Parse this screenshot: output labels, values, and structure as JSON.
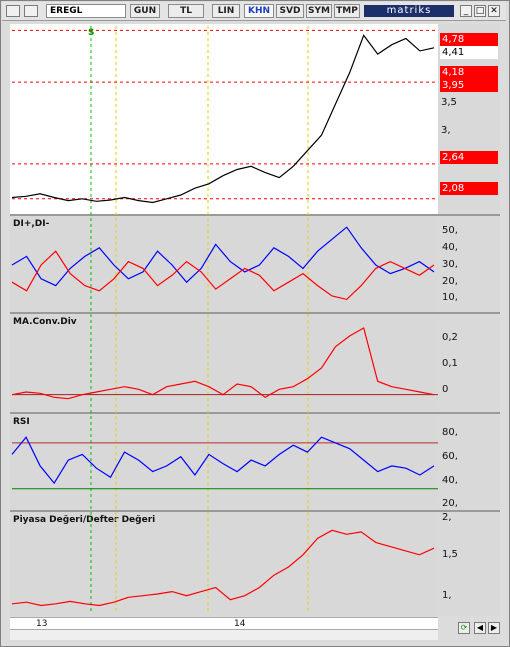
{
  "toolbar": {
    "symbol": "EREGL",
    "buttons": [
      "GUN",
      "TL",
      "LIN",
      "KHN",
      "SVD",
      "SYM",
      "TMP"
    ],
    "active_button": "KHN",
    "brand": "matriks"
  },
  "window_controls": {
    "minimize": "_",
    "maximize": "□",
    "close": "✕"
  },
  "price_panel": {
    "tags": [
      "4,78",
      "4,41",
      "4,18",
      "3,95",
      "2,64",
      "2,08"
    ],
    "ticks": [
      "3,5",
      "3,"
    ],
    "marker": "S"
  },
  "panels": {
    "di": {
      "title": "DI+,DI-",
      "ticks": [
        "50,",
        "40,",
        "30,",
        "20,",
        "10,"
      ]
    },
    "macd": {
      "title": "MA.Conv.Div",
      "ticks": [
        "0,2",
        "0,1",
        "0"
      ]
    },
    "rsi": {
      "title": "RSI",
      "ticks": [
        "80,",
        "60,",
        "40,",
        "20,"
      ]
    },
    "pddd": {
      "title": "Piyasa Değeri/Defter Değeri",
      "ticks": [
        "2,",
        "1,5",
        "1,"
      ]
    }
  },
  "dates": [
    "13",
    "14"
  ],
  "colors": {
    "price": "#000000",
    "di_plus": "#0000ff",
    "di_minus": "#ff0000",
    "tag_red": "#ff0000",
    "guide_green": "#00c000",
    "guide_yellow": "#e6d200"
  },
  "chart_data": [
    {
      "type": "line",
      "title": "EREGL",
      "ylim": [
        1.9,
        4.85
      ],
      "series": [
        {
          "name": "EREGL",
          "values": [
            2.1,
            2.12,
            2.16,
            2.1,
            2.05,
            2.08,
            2.04,
            2.06,
            2.1,
            2.05,
            2.02,
            2.08,
            2.14,
            2.25,
            2.32,
            2.45,
            2.55,
            2.6,
            2.5,
            2.42,
            2.6,
            2.85,
            3.1,
            3.6,
            4.1,
            4.7,
            4.4,
            4.55,
            4.65,
            4.45,
            4.5
          ]
        }
      ]
    },
    {
      "type": "line",
      "title": "DI+,DI-",
      "ylim": [
        5,
        55
      ],
      "series": [
        {
          "name": "DI+",
          "values": [
            30,
            35,
            22,
            18,
            28,
            35,
            40,
            30,
            22,
            26,
            38,
            30,
            20,
            28,
            42,
            32,
            26,
            30,
            40,
            35,
            28,
            38,
            45,
            52,
            40,
            30,
            25,
            28,
            32,
            26
          ]
        },
        {
          "name": "DI-",
          "values": [
            20,
            15,
            30,
            38,
            25,
            18,
            15,
            22,
            32,
            28,
            18,
            24,
            32,
            26,
            16,
            22,
            28,
            24,
            15,
            20,
            25,
            18,
            12,
            10,
            18,
            28,
            32,
            28,
            24,
            30
          ]
        }
      ]
    },
    {
      "type": "line",
      "title": "MA.Conv.Div",
      "ylim": [
        -0.05,
        0.28
      ],
      "series": [
        {
          "name": "MACD",
          "values": [
            0,
            0.01,
            0.005,
            -0.01,
            -0.015,
            0,
            0.01,
            0.02,
            0.03,
            0.02,
            0,
            0.03,
            0.04,
            0.05,
            0.03,
            0,
            0.04,
            0.03,
            -0.01,
            0.02,
            0.03,
            0.06,
            0.1,
            0.18,
            0.22,
            0.25,
            0.05,
            0.03,
            0.02,
            0.01,
            0
          ]
        }
      ]
    },
    {
      "type": "line",
      "title": "RSI",
      "ylim": [
        15,
        90
      ],
      "series": [
        {
          "name": "RSI",
          "values": [
            60,
            75,
            50,
            35,
            55,
            60,
            48,
            40,
            62,
            55,
            45,
            50,
            58,
            42,
            60,
            52,
            45,
            55,
            50,
            60,
            68,
            62,
            75,
            70,
            65,
            55,
            45,
            50,
            48,
            42,
            50
          ]
        }
      ]
    },
    {
      "type": "line",
      "title": "Piyasa Değeri/Defter Değeri",
      "ylim": [
        0.9,
        2.05
      ],
      "series": [
        {
          "name": "PD/DD",
          "values": [
            1.0,
            1.02,
            0.98,
            1.0,
            1.03,
            1.0,
            0.98,
            1.02,
            1.08,
            1.1,
            1.12,
            1.15,
            1.1,
            1.15,
            1.2,
            1.05,
            1.1,
            1.2,
            1.35,
            1.45,
            1.6,
            1.8,
            1.9,
            1.85,
            1.88,
            1.75,
            1.7,
            1.65,
            1.6,
            1.68
          ]
        }
      ]
    }
  ]
}
